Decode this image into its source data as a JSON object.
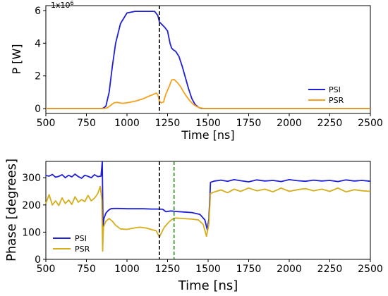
{
  "chart_data": [
    {
      "type": "line",
      "title": "",
      "xlabel": "Time [ns]",
      "ylabel": "P [W]",
      "y_multiplier_label": "1x10",
      "y_multiplier_exp": "6",
      "xlim": [
        500,
        2500
      ],
      "ylim": [
        -0.3,
        6.3
      ],
      "xticks": [
        500,
        750,
        1000,
        1250,
        1500,
        1750,
        2000,
        2250,
        2500
      ],
      "yticks": [
        0,
        2,
        4,
        6
      ],
      "xtick_labels": [
        "500",
        "750",
        "1000",
        "1250",
        "1500",
        "1750",
        "2000",
        "2250",
        "2500"
      ],
      "ytick_labels": [
        "0",
        "2",
        "4",
        "6"
      ],
      "grid": false,
      "legend_position": "lower-right",
      "vlines": [
        {
          "x": 1200,
          "color": "#000000",
          "style": "dashed"
        }
      ],
      "series": [
        {
          "name": "PSI",
          "color": "#1f1fd6",
          "x": [
            500,
            850,
            870,
            890,
            910,
            930,
            960,
            1000,
            1050,
            1100,
            1140,
            1170,
            1190,
            1200,
            1210,
            1230,
            1250,
            1265,
            1275,
            1285,
            1300,
            1320,
            1340,
            1360,
            1380,
            1400,
            1420,
            1440,
            1460,
            2500
          ],
          "y": [
            0,
            0,
            0.15,
            1.0,
            2.6,
            4.0,
            5.2,
            5.85,
            5.95,
            5.95,
            5.95,
            5.95,
            5.7,
            5.3,
            5.2,
            5.0,
            4.75,
            4.0,
            3.7,
            3.6,
            3.5,
            3.2,
            2.6,
            1.9,
            1.2,
            0.6,
            0.25,
            0.08,
            0,
            0
          ]
        },
        {
          "name": "PSR",
          "color": "#f5a11c",
          "x": [
            500,
            860,
            880,
            900,
            920,
            940,
            970,
            1000,
            1050,
            1100,
            1140,
            1160,
            1180,
            1190,
            1200,
            1210,
            1225,
            1240,
            1260,
            1275,
            1290,
            1310,
            1330,
            1350,
            1370,
            1390,
            1410,
            1430,
            1450,
            1470,
            2500
          ],
          "y": [
            0,
            0,
            0.05,
            0.2,
            0.35,
            0.38,
            0.32,
            0.35,
            0.45,
            0.6,
            0.78,
            0.85,
            0.95,
            0.85,
            0.45,
            0.35,
            0.4,
            0.9,
            1.35,
            1.75,
            1.78,
            1.6,
            1.35,
            1.0,
            0.7,
            0.45,
            0.25,
            0.12,
            0.05,
            0,
            0
          ]
        }
      ]
    },
    {
      "type": "line",
      "title": "",
      "xlabel": "Time [ns]",
      "ylabel": "Phase [degrees]",
      "xlim": [
        500,
        2500
      ],
      "ylim": [
        0,
        360
      ],
      "xticks": [
        500,
        750,
        1000,
        1250,
        1500,
        1750,
        2000,
        2250,
        2500
      ],
      "yticks": [
        0,
        100,
        200,
        300
      ],
      "xtick_labels": [
        "500",
        "750",
        "1000",
        "1250",
        "1500",
        "1750",
        "2000",
        "2250",
        "2500"
      ],
      "ytick_labels": [
        "0",
        "100",
        "200",
        "300"
      ],
      "grid": false,
      "legend_position": "lower-left",
      "vlines": [
        {
          "x": 1200,
          "color": "#000000",
          "style": "dashed"
        },
        {
          "x": 1290,
          "color": "#2e8b1f",
          "style": "dashed"
        }
      ],
      "series": [
        {
          "name": "PSI",
          "color": "#1f1fd6",
          "x": [
            500,
            520,
            540,
            560,
            580,
            600,
            620,
            640,
            660,
            680,
            700,
            720,
            740,
            760,
            780,
            800,
            820,
            840,
            848,
            852,
            858,
            870,
            885,
            900,
            920,
            950,
            1000,
            1050,
            1100,
            1150,
            1200,
            1220,
            1240,
            1270,
            1300,
            1350,
            1400,
            1450,
            1480,
            1495,
            1505,
            1515,
            1540,
            1580,
            1620,
            1660,
            1700,
            1750,
            1800,
            1850,
            1900,
            1950,
            2000,
            2050,
            2100,
            2150,
            2200,
            2250,
            2300,
            2350,
            2400,
            2450,
            2500
          ],
          "y": [
            308,
            306,
            312,
            302,
            305,
            311,
            300,
            309,
            303,
            313,
            304,
            298,
            309,
            305,
            300,
            311,
            304,
            306,
            360,
            120,
            150,
            170,
            180,
            186,
            187,
            187,
            186,
            186,
            186,
            185,
            185,
            184,
            175,
            178,
            176,
            174,
            172,
            165,
            145,
            108,
            150,
            283,
            288,
            291,
            287,
            293,
            289,
            285,
            292,
            288,
            290,
            286,
            293,
            289,
            287,
            291,
            288,
            290,
            286,
            292,
            288,
            290,
            287
          ]
        },
        {
          "name": "PSR",
          "color": "#d6ad1a",
          "x": [
            500,
            520,
            540,
            560,
            580,
            600,
            620,
            640,
            660,
            680,
            700,
            720,
            740,
            760,
            780,
            800,
            820,
            835,
            845,
            850,
            855,
            870,
            890,
            910,
            930,
            960,
            1000,
            1040,
            1080,
            1120,
            1160,
            1180,
            1200,
            1215,
            1230,
            1245,
            1260,
            1280,
            1300,
            1350,
            1400,
            1440,
            1470,
            1490,
            1505,
            1515,
            1540,
            1580,
            1620,
            1660,
            1700,
            1750,
            1800,
            1850,
            1900,
            1950,
            2000,
            2050,
            2100,
            2150,
            2200,
            2250,
            2300,
            2350,
            2400,
            2450,
            2500
          ],
          "y": [
            205,
            238,
            200,
            215,
            198,
            226,
            205,
            218,
            202,
            230,
            210,
            220,
            212,
            235,
            215,
            225,
            242,
            268,
            220,
            30,
            118,
            140,
            150,
            140,
            125,
            112,
            110,
            115,
            118,
            115,
            108,
            105,
            82,
            100,
            118,
            128,
            138,
            148,
            152,
            150,
            148,
            145,
            128,
            85,
            130,
            242,
            248,
            255,
            245,
            258,
            250,
            262,
            252,
            258,
            248,
            262,
            250,
            256,
            260,
            252,
            258,
            250,
            262,
            248,
            256,
            252,
            250
          ]
        }
      ]
    }
  ]
}
